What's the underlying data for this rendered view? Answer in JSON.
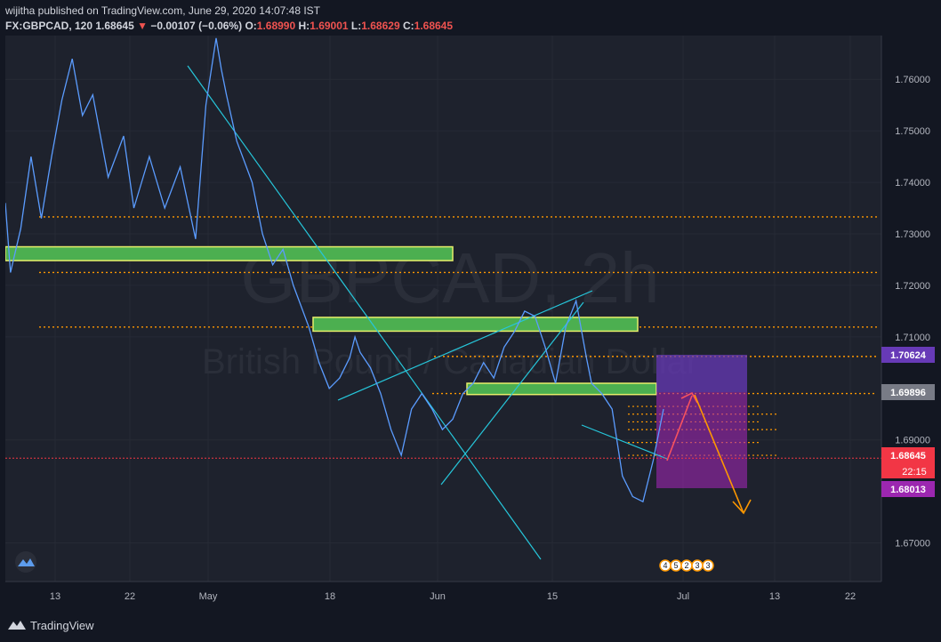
{
  "header": {
    "publish_line": "wijitha published on TradingView.com, June 29, 2020 14:07:48 IST",
    "symbol": "FX:GBPCAD, 120",
    "last": "1.68645",
    "change": "−0.00107 (−0.06%)",
    "o_label": "O:",
    "o_value": "1.68990",
    "h_label": "H:",
    "h_value": "1.69001",
    "l_label": "L:",
    "l_value": "1.68629",
    "c_label": "C:",
    "c_value": "1.68645"
  },
  "watermark": {
    "symbol": "GBPCAD, 2h",
    "name": "British Pound / Canadian Dollar"
  },
  "footer": {
    "brand": "TradingView"
  },
  "colors": {
    "background": "#1e222d",
    "candle": "#2962ff",
    "trendline": "#26c6da",
    "zone_fill": "#4caf50",
    "zone_border": "#e6ee6a",
    "level": "#ff9800",
    "current": "#f23645",
    "target_upper": "#673ab7",
    "target_lower": "#9c27b0"
  },
  "chart_data": {
    "type": "line",
    "title": "",
    "symbol": "FX:GBPCAD",
    "interval": "120",
    "x_ticks": [
      "13",
      "22",
      "May",
      "18",
      "Jun",
      "15",
      "Jul",
      "13",
      "22"
    ],
    "y_ticks": [
      "1.76000",
      "1.75000",
      "1.74000",
      "1.73000",
      "1.72000",
      "1.71000",
      "1.69000",
      "1.67000"
    ],
    "ylim": [
      1.6625,
      1.7685
    ],
    "series": [
      {
        "name": "",
        "x": [
          0,
          2,
          6,
          10,
          14,
          18,
          22,
          26,
          30,
          34,
          40,
          46,
          50,
          56,
          62,
          68,
          74,
          78,
          82,
          84,
          86,
          90,
          96,
          100,
          104,
          108,
          112,
          118,
          122,
          126,
          130,
          134,
          136,
          138,
          142,
          146,
          150,
          154,
          158,
          162,
          166,
          170,
          174,
          178,
          182,
          186,
          190,
          194,
          198,
          202,
          206,
          210,
          214,
          218,
          222,
          226,
          228,
          232,
          236,
          240,
          244,
          248,
          252,
          256
        ],
        "values": [
          1.736,
          1.7225,
          1.731,
          1.745,
          1.733,
          1.745,
          1.756,
          1.764,
          1.753,
          1.757,
          1.741,
          1.749,
          1.735,
          1.745,
          1.735,
          1.743,
          1.729,
          1.755,
          1.768,
          1.762,
          1.757,
          1.748,
          1.74,
          1.73,
          1.724,
          1.727,
          1.72,
          1.712,
          1.705,
          1.7,
          1.702,
          1.706,
          1.71,
          1.707,
          1.704,
          1.699,
          1.692,
          1.687,
          1.696,
          1.699,
          1.696,
          1.692,
          1.694,
          1.699,
          1.701,
          1.705,
          1.702,
          1.708,
          1.711,
          1.715,
          1.714,
          1.708,
          1.701,
          1.712,
          1.717,
          1.706,
          1.701,
          1.699,
          1.696,
          1.683,
          1.679,
          1.678,
          1.686,
          1.696
        ]
      }
    ],
    "price_labels": [
      {
        "value": "1.70624",
        "kind": "target_upper"
      },
      {
        "value": "1.69896",
        "kind": "level"
      },
      {
        "value": "1.68645",
        "kind": "current"
      },
      {
        "value": "22:15",
        "kind": "countdown"
      },
      {
        "value": "1.68013",
        "kind": "target_lower"
      }
    ],
    "levels": [
      1.7333,
      1.7225,
      1.7119,
      1.7062,
      1.699
    ],
    "zones": [
      {
        "from": 1.7255,
        "to": 1.7268
      },
      {
        "from": 1.7118,
        "to": 1.7131
      },
      {
        "from": 1.6995,
        "to": 1.7003
      }
    ],
    "events": [
      "4",
      "5",
      "2",
      "3",
      "3"
    ],
    "grid": true,
    "legend": "none"
  }
}
